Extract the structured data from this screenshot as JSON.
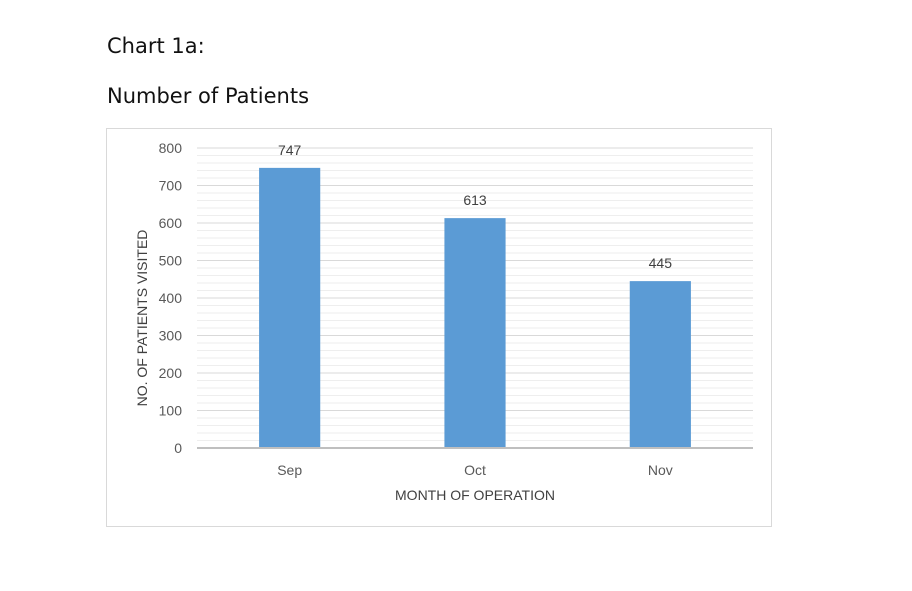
{
  "document": {
    "label": "Chart 1a:",
    "heading": "Number of Patients"
  },
  "chart_data": {
    "type": "bar",
    "categories": [
      "Sep",
      "Oct",
      "Nov"
    ],
    "values": [
      747,
      613,
      445
    ],
    "data_labels": [
      "747",
      "613",
      "445"
    ],
    "title": "",
    "xlabel": "MONTH OF OPERATION",
    "ylabel": "NO. OF PATIENTS VISITED",
    "ylim": [
      0,
      800
    ],
    "yticks": [
      0,
      100,
      200,
      300,
      400,
      500,
      600,
      700,
      800
    ],
    "ytick_labels": [
      "0",
      "100",
      "200",
      "300",
      "400",
      "500",
      "600",
      "700",
      "800"
    ],
    "grid": true,
    "minor_grid": true,
    "legend": "none",
    "colors": {
      "bar": "#5b9bd5",
      "grid_major": "#d9d9d9",
      "grid_minor": "#eeeeee",
      "axis": "#bfbfbf",
      "text": "#595959"
    }
  }
}
